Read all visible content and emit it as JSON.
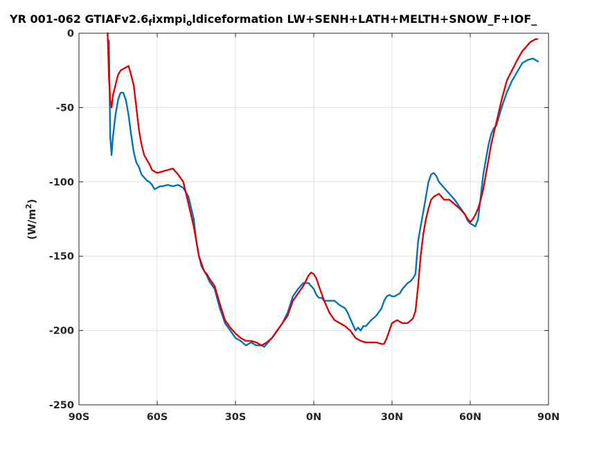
{
  "chart_data": {
    "type": "line",
    "title_parts": [
      {
        "text": "YR 001-062 GTIAFv2.6",
        "sub": false
      },
      {
        "text": "f",
        "sub": true
      },
      {
        "text": "ixmpi",
        "sub": false
      },
      {
        "text": "o",
        "sub": true
      },
      {
        "text": "ldiceformation LW+SENH+LATH+MELTH+SNOW_F+IOF_",
        "sub": false
      }
    ],
    "ylabel_parts": [
      {
        "text": "(W/m",
        "sup": false
      },
      {
        "text": "2",
        "sup": true
      },
      {
        "text": ")",
        "sup": false
      }
    ],
    "xlabel": "",
    "xlim": [
      -90,
      90
    ],
    "ylim": [
      -250,
      0
    ],
    "xticks": [
      {
        "value": -90,
        "label": "90S"
      },
      {
        "value": -60,
        "label": "60S"
      },
      {
        "value": -30,
        "label": "30S"
      },
      {
        "value": 0,
        "label": "0N"
      },
      {
        "value": 30,
        "label": "30N"
      },
      {
        "value": 60,
        "label": "60N"
      },
      {
        "value": 90,
        "label": "90N"
      }
    ],
    "yticks": [
      {
        "value": 0,
        "label": "0"
      },
      {
        "value": -50,
        "label": "-50"
      },
      {
        "value": -100,
        "label": "-100"
      },
      {
        "value": -150,
        "label": "-150"
      },
      {
        "value": -200,
        "label": "-200"
      },
      {
        "value": -250,
        "label": "-250"
      }
    ],
    "grid": true,
    "series": [
      {
        "color": "#0072bd",
        "dashed": false,
        "x": [
          -78.5,
          -78,
          -77.5,
          -77,
          -76,
          -75,
          -74.5,
          -74,
          -73,
          -72,
          -71,
          -70,
          -69,
          -68,
          -67,
          -66,
          -65,
          -64,
          -63,
          -62,
          -61,
          -60,
          -59,
          -58,
          -56,
          -54,
          -52,
          -50,
          -48,
          -46,
          -45,
          -44,
          -43,
          -42,
          -41,
          -40,
          -38,
          -36,
          -34,
          -32,
          -30,
          -28,
          -26,
          -24,
          -22,
          -20,
          -19,
          -18,
          -16,
          -14,
          -12,
          -10,
          -8,
          -6,
          -4,
          -2,
          -1,
          0,
          1,
          2,
          3,
          4,
          6,
          8,
          10,
          12,
          13,
          14,
          15,
          16,
          17,
          18,
          19,
          20,
          21,
          22,
          24,
          26,
          27,
          28,
          29,
          30,
          31,
          32,
          33,
          34,
          35,
          36,
          37,
          38,
          39,
          40,
          41,
          42,
          43,
          44,
          45,
          46,
          47,
          48,
          49,
          50,
          51,
          52,
          54,
          56,
          58,
          59,
          60,
          61,
          62,
          63,
          64,
          65,
          66,
          67,
          68,
          69,
          70,
          72,
          74,
          76,
          78,
          80,
          82,
          84,
          85,
          86
        ],
        "y": [
          -5,
          -70,
          -82,
          -70,
          -55,
          -45,
          -42,
          -40,
          -40,
          -45,
          -55,
          -68,
          -80,
          -87,
          -90,
          -95,
          -97,
          -99,
          -100,
          -102,
          -105,
          -104,
          -103,
          -103,
          -102,
          -103,
          -102,
          -104,
          -110,
          -125,
          -140,
          -150,
          -157,
          -160,
          -163,
          -167,
          -172,
          -185,
          -195,
          -200,
          -205,
          -207,
          -210,
          -208,
          -210,
          -210,
          -211,
          -209,
          -205,
          -200,
          -195,
          -188,
          -177,
          -172,
          -168,
          -168,
          -170,
          -172,
          -176,
          -178,
          -178,
          -180,
          -180,
          -180,
          -183,
          -185,
          -188,
          -192,
          -196,
          -200,
          -198,
          -200,
          -197,
          -197,
          -195,
          -193,
          -190,
          -185,
          -180,
          -177,
          -176,
          -177,
          -177,
          -176,
          -175,
          -172,
          -170,
          -168,
          -167,
          -165,
          -162,
          -140,
          -130,
          -120,
          -110,
          -100,
          -95,
          -94,
          -96,
          -100,
          -102,
          -104,
          -106,
          -108,
          -112,
          -117,
          -122,
          -126,
          -128,
          -129,
          -130,
          -125,
          -110,
          -95,
          -85,
          -75,
          -68,
          -64,
          -62,
          -50,
          -40,
          -32,
          -26,
          -20,
          -18,
          -17,
          -18,
          -19
        ]
      },
      {
        "color": "#dd0000",
        "dashed": true,
        "x": [
          -79,
          -78.5,
          -78,
          -77.5,
          -77,
          -76,
          -75,
          -74,
          -73,
          -72,
          -71,
          -70,
          -69,
          -68,
          -67,
          -66,
          -65,
          -64,
          -63,
          -62,
          -61,
          -60,
          -58,
          -56,
          -54,
          -52,
          -50,
          -48,
          -46,
          -45,
          -44,
          -43,
          -42,
          -41,
          -40,
          -38,
          -36,
          -34,
          -32,
          -30,
          -28,
          -26,
          -24,
          -22,
          -20,
          -18,
          -16,
          -14,
          -12,
          -10,
          -8,
          -6,
          -4,
          -2,
          -1,
          0,
          1,
          2,
          3,
          4,
          6,
          8,
          10,
          12,
          14,
          16,
          18,
          20,
          22,
          24,
          26,
          27,
          28,
          30,
          32,
          34,
          36,
          38,
          39,
          40,
          41,
          42,
          43,
          44,
          45,
          46,
          47,
          48,
          49,
          50,
          52,
          54,
          56,
          58,
          59,
          60,
          61,
          62,
          63,
          64,
          65,
          66,
          67,
          68,
          70,
          72,
          74,
          76,
          78,
          80,
          82,
          83,
          84,
          85,
          86
        ],
        "y": [
          0,
          -30,
          -45,
          -50,
          -42,
          -35,
          -28,
          -25,
          -24,
          -23,
          -22,
          -28,
          -35,
          -50,
          -65,
          -75,
          -82,
          -85,
          -88,
          -92,
          -93,
          -94,
          -93,
          -92,
          -91,
          -95,
          -100,
          -115,
          -130,
          -140,
          -150,
          -155,
          -160,
          -162,
          -165,
          -170,
          -182,
          -193,
          -198,
          -202,
          -205,
          -207,
          -207,
          -208,
          -210,
          -208,
          -205,
          -200,
          -195,
          -190,
          -180,
          -175,
          -170,
          -163,
          -161,
          -162,
          -165,
          -170,
          -175,
          -180,
          -188,
          -193,
          -195,
          -197,
          -200,
          -205,
          -207,
          -208,
          -208,
          -208,
          -209,
          -209,
          -205,
          -195,
          -193,
          -195,
          -195,
          -192,
          -187,
          -170,
          -150,
          -135,
          -125,
          -118,
          -112,
          -110,
          -109,
          -108,
          -110,
          -112,
          -112,
          -115,
          -118,
          -122,
          -125,
          -127,
          -125,
          -122,
          -118,
          -112,
          -105,
          -95,
          -85,
          -75,
          -60,
          -45,
          -32,
          -25,
          -18,
          -12,
          -8,
          -6,
          -5,
          -4,
          -4
        ]
      }
    ]
  }
}
